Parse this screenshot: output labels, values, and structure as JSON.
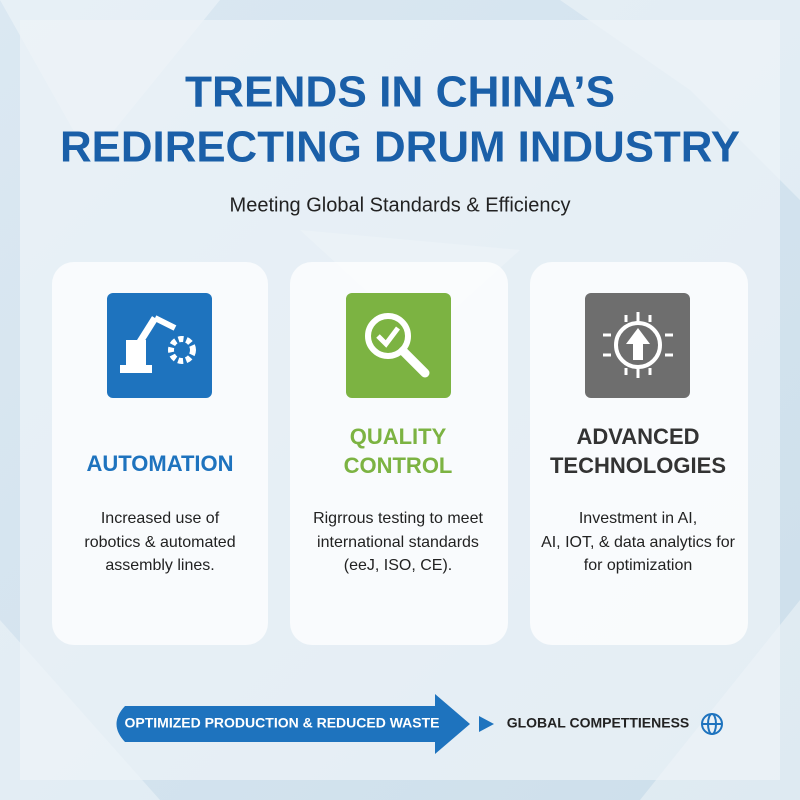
{
  "header": {
    "title_lines": [
      "TRENDS IN CHINA’S",
      "REDIRECTING DRUM INDUSTRY"
    ],
    "subtitle": "Meeting Global Standards & Efficiency"
  },
  "cards": [
    {
      "title_lines": [
        "AUTOMATION"
      ],
      "description_lines": [
        "Increased use of",
        "robotics & automated",
        "assembly lines."
      ]
    },
    {
      "title_lines": [
        "QUALITY",
        "CONTROL"
      ],
      "description_lines": [
        "Rigrrous testing to meet",
        "international standards",
        "(eeJ, ISO, CE)."
      ]
    },
    {
      "title_lines": [
        "ADVANCED",
        "TECHNOLOGIES"
      ],
      "description_lines": [
        "Investment in AI,",
        "AI, IOT, & data analytics for",
        "for optimization"
      ]
    }
  ],
  "footer": {
    "arrow_text": "OPTIMIZED PRODUCTION & REDUCED WASTE",
    "result_text": "GLOBAL COMPETTIENESS"
  }
}
